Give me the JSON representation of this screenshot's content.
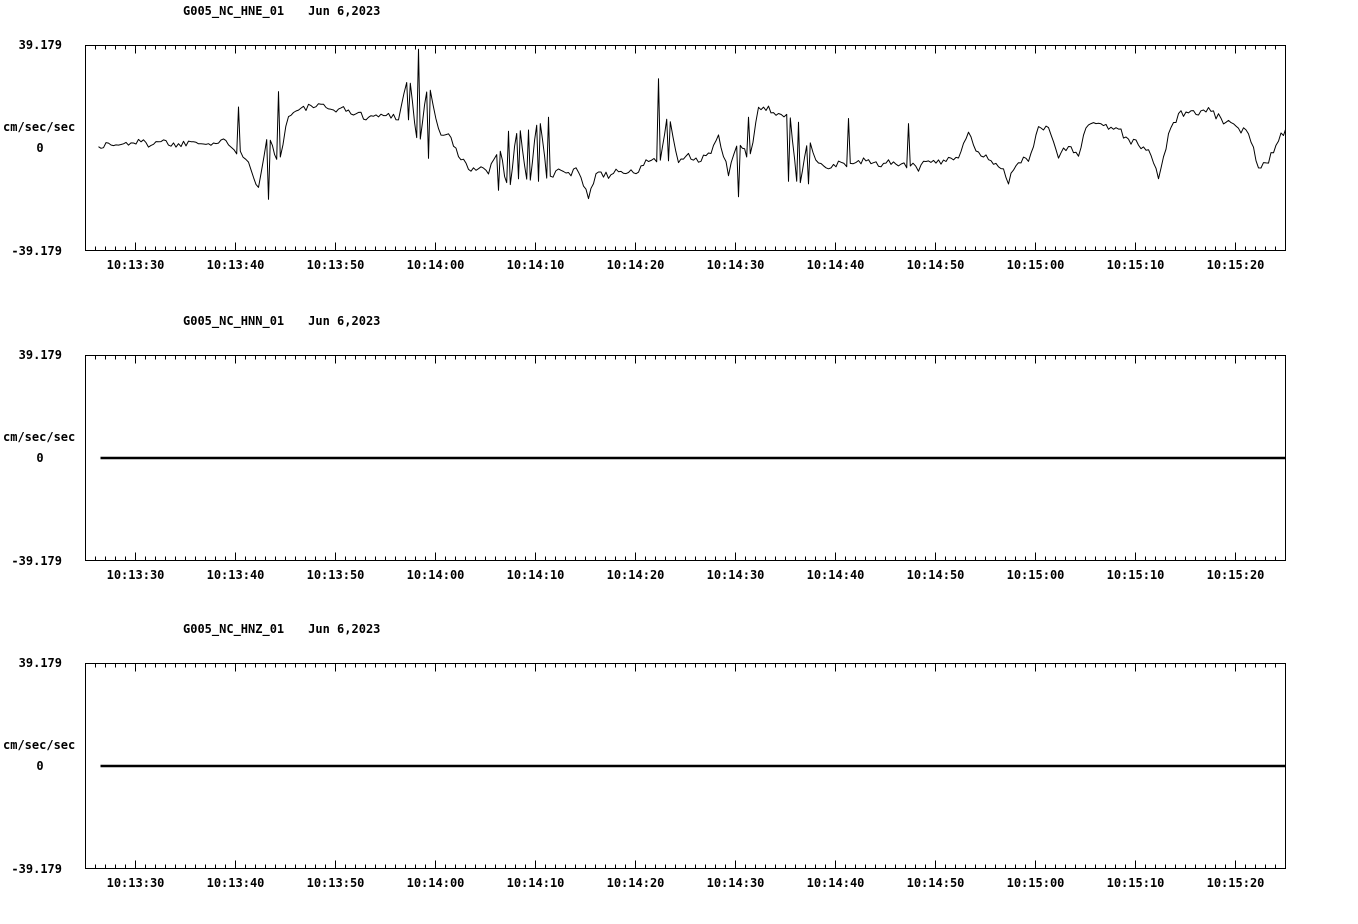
{
  "page": {
    "background": "#ffffff",
    "ink": "#000000"
  },
  "chart_data": [
    {
      "type": "line",
      "station_label": "G005_NC_HNE_01",
      "date_label": "Jun 6,2023",
      "ylabel": "cm/sec/sec",
      "y_max": 39.179,
      "y_min": -39.179,
      "y_max_label": "39.179",
      "y_zero_label": "0",
      "y_min_label": "-39.179",
      "x_start": "10:13:25",
      "x_end": "10:15:25",
      "duration_s": 120,
      "minor_tick_s": 1,
      "x_tick_times_s": [
        5,
        15,
        25,
        35,
        45,
        55,
        65,
        75,
        85,
        95,
        105,
        115
      ],
      "x_tick_labels": [
        "10:13:30",
        "10:13:40",
        "10:13:50",
        "10:14:00",
        "10:14:10",
        "10:14:20",
        "10:14:30",
        "10:14:40",
        "10:14:50",
        "10:15:00",
        "10:15:10",
        "10:15:20"
      ],
      "trace": {
        "kind": "series",
        "start_offset_s": 1.3,
        "sample_interval_s": 1,
        "noise_amplitude": 1.4,
        "values": [
          0.5,
          1.5,
          1,
          2,
          2.5,
          1.5,
          3,
          2,
          1,
          2.5,
          3,
          1.5,
          2,
          2.5,
          16,
          -5,
          -16,
          -20,
          22,
          13,
          14.5,
          16,
          16.5,
          15,
          15.5,
          14.5,
          13,
          12,
          12.5,
          13,
          12,
          11,
          38.5,
          -4,
          6.5,
          5,
          -3,
          -8,
          -7.5,
          -9,
          -16.5,
          6.5,
          -12,
          7,
          -13,
          12,
          -9,
          -10,
          -8.5,
          -18.5,
          -9,
          -11,
          -8,
          -10,
          -9,
          -4.5,
          27,
          -5,
          -6.5,
          -3,
          -5.5,
          -2.5,
          4,
          -10,
          -19,
          12,
          14.5,
          15,
          13.5,
          -13,
          10,
          -14,
          -6,
          -7.5,
          -6,
          11.5,
          -6,
          -4.5,
          -7,
          -5.5,
          -6,
          9.5,
          -8,
          -4,
          -5.5,
          -3.5,
          -5,
          6.5,
          -2.5,
          -4,
          -6,
          -13,
          -5.5,
          -4,
          7.5,
          8,
          -3,
          1,
          -2,
          9.5,
          10.5,
          8,
          7.5,
          3,
          1.5,
          -1,
          -11.5,
          5,
          13,
          14,
          13.5,
          14.5,
          12,
          9.5,
          7,
          6.5,
          -7,
          -5,
          4,
          8
        ]
      }
    },
    {
      "type": "line",
      "station_label": "G005_NC_HNN_01",
      "date_label": "Jun 6,2023",
      "ylabel": "cm/sec/sec",
      "y_max": 39.179,
      "y_min": -39.179,
      "y_max_label": "39.179",
      "y_zero_label": "0",
      "y_min_label": "-39.179",
      "x_start": "10:13:25",
      "x_end": "10:15:25",
      "duration_s": 120,
      "minor_tick_s": 1,
      "x_tick_times_s": [
        5,
        15,
        25,
        35,
        45,
        55,
        65,
        75,
        85,
        95,
        105,
        115
      ],
      "x_tick_labels": [
        "10:13:30",
        "10:13:40",
        "10:13:50",
        "10:14:00",
        "10:14:10",
        "10:14:20",
        "10:14:30",
        "10:14:40",
        "10:14:50",
        "10:15:00",
        "10:15:10",
        "10:15:20"
      ],
      "trace": {
        "kind": "flat",
        "value": 0,
        "start_offset_s": 1.5
      }
    },
    {
      "type": "line",
      "station_label": "G005_NC_HNZ_01",
      "date_label": "Jun 6,2023",
      "ylabel": "cm/sec/sec",
      "y_max": 39.179,
      "y_min": -39.179,
      "y_max_label": "39.179",
      "y_zero_label": "0",
      "y_min_label": "-39.179",
      "x_start": "10:13:25",
      "x_end": "10:15:25",
      "duration_s": 120,
      "minor_tick_s": 1,
      "x_tick_times_s": [
        5,
        15,
        25,
        35,
        45,
        55,
        65,
        75,
        85,
        95,
        105,
        115
      ],
      "x_tick_labels": [
        "10:13:30",
        "10:13:40",
        "10:13:50",
        "10:14:00",
        "10:14:10",
        "10:14:20",
        "10:14:30",
        "10:14:40",
        "10:14:50",
        "10:15:00",
        "10:15:10",
        "10:15:20"
      ],
      "trace": {
        "kind": "flat",
        "value": 0,
        "start_offset_s": 1.5
      }
    }
  ]
}
